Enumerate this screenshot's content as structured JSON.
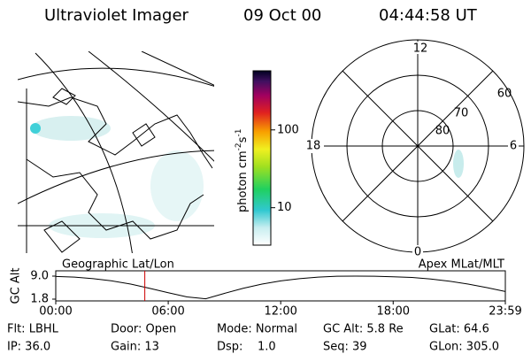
{
  "header": {
    "title": "Ultraviolet Imager",
    "date": "09 Oct 00",
    "time": "04:44:58 UT"
  },
  "colorbar": {
    "label": [
      "photon cm",
      "-2",
      "s",
      "-1"
    ],
    "range": [
      3.3,
      575
    ],
    "log": true,
    "ticks": [
      100,
      10
    ]
  },
  "map": {
    "label": "Geographic Lat/Lon"
  },
  "polar": {
    "label": "Apex MLat/MLT",
    "mlt_labels": [
      "12",
      "18",
      "6",
      "0"
    ],
    "ring_labels": [
      "60",
      "70",
      "80"
    ]
  },
  "chart_data": {
    "type": "line",
    "ylabel": "GC Alt",
    "color": "#000000",
    "cursor_color": "#cc0000",
    "cursor": 4.75,
    "x": [
      0,
      1,
      2,
      3,
      4,
      5,
      6,
      7,
      8,
      9,
      10,
      11,
      12,
      13,
      14,
      15,
      16,
      17,
      18,
      19,
      20,
      21,
      22,
      23,
      23.983
    ],
    "values": [
      8.9,
      8.7,
      8.2,
      7.5,
      6.5,
      5.2,
      3.8,
      2.5,
      1.9,
      3.6,
      5.2,
      6.5,
      7.5,
      8.2,
      8.7,
      8.95,
      9.0,
      8.95,
      8.8,
      8.6,
      8.1,
      7.4,
      6.5,
      5.4,
      4.2
    ],
    "xlim": [
      0,
      23.983
    ],
    "xticks": [
      {
        "value": 0,
        "label": "00:00"
      },
      {
        "value": 6,
        "label": "06:00"
      },
      {
        "value": 12,
        "label": "12:00"
      },
      {
        "value": 18,
        "label": "18:00"
      },
      {
        "value": 23.983,
        "label": "23:59"
      }
    ],
    "ylim": [
      1.8,
      9.0
    ],
    "yticks": [
      {
        "value": 9.0,
        "label": "9.0"
      },
      {
        "value": 1.8,
        "label": "1.8"
      }
    ]
  },
  "footer": {
    "rows": [
      [
        "Flt: LBHL",
        "Door: Open",
        "Mode: Normal",
        "GC Alt: 5.8 Re",
        "GLat: 64.6"
      ],
      [
        "IP: 36.0",
        "Gain: 13",
        "Dsp:    1.0",
        "Seq: 39",
        "GLon: 305.0"
      ]
    ]
  }
}
